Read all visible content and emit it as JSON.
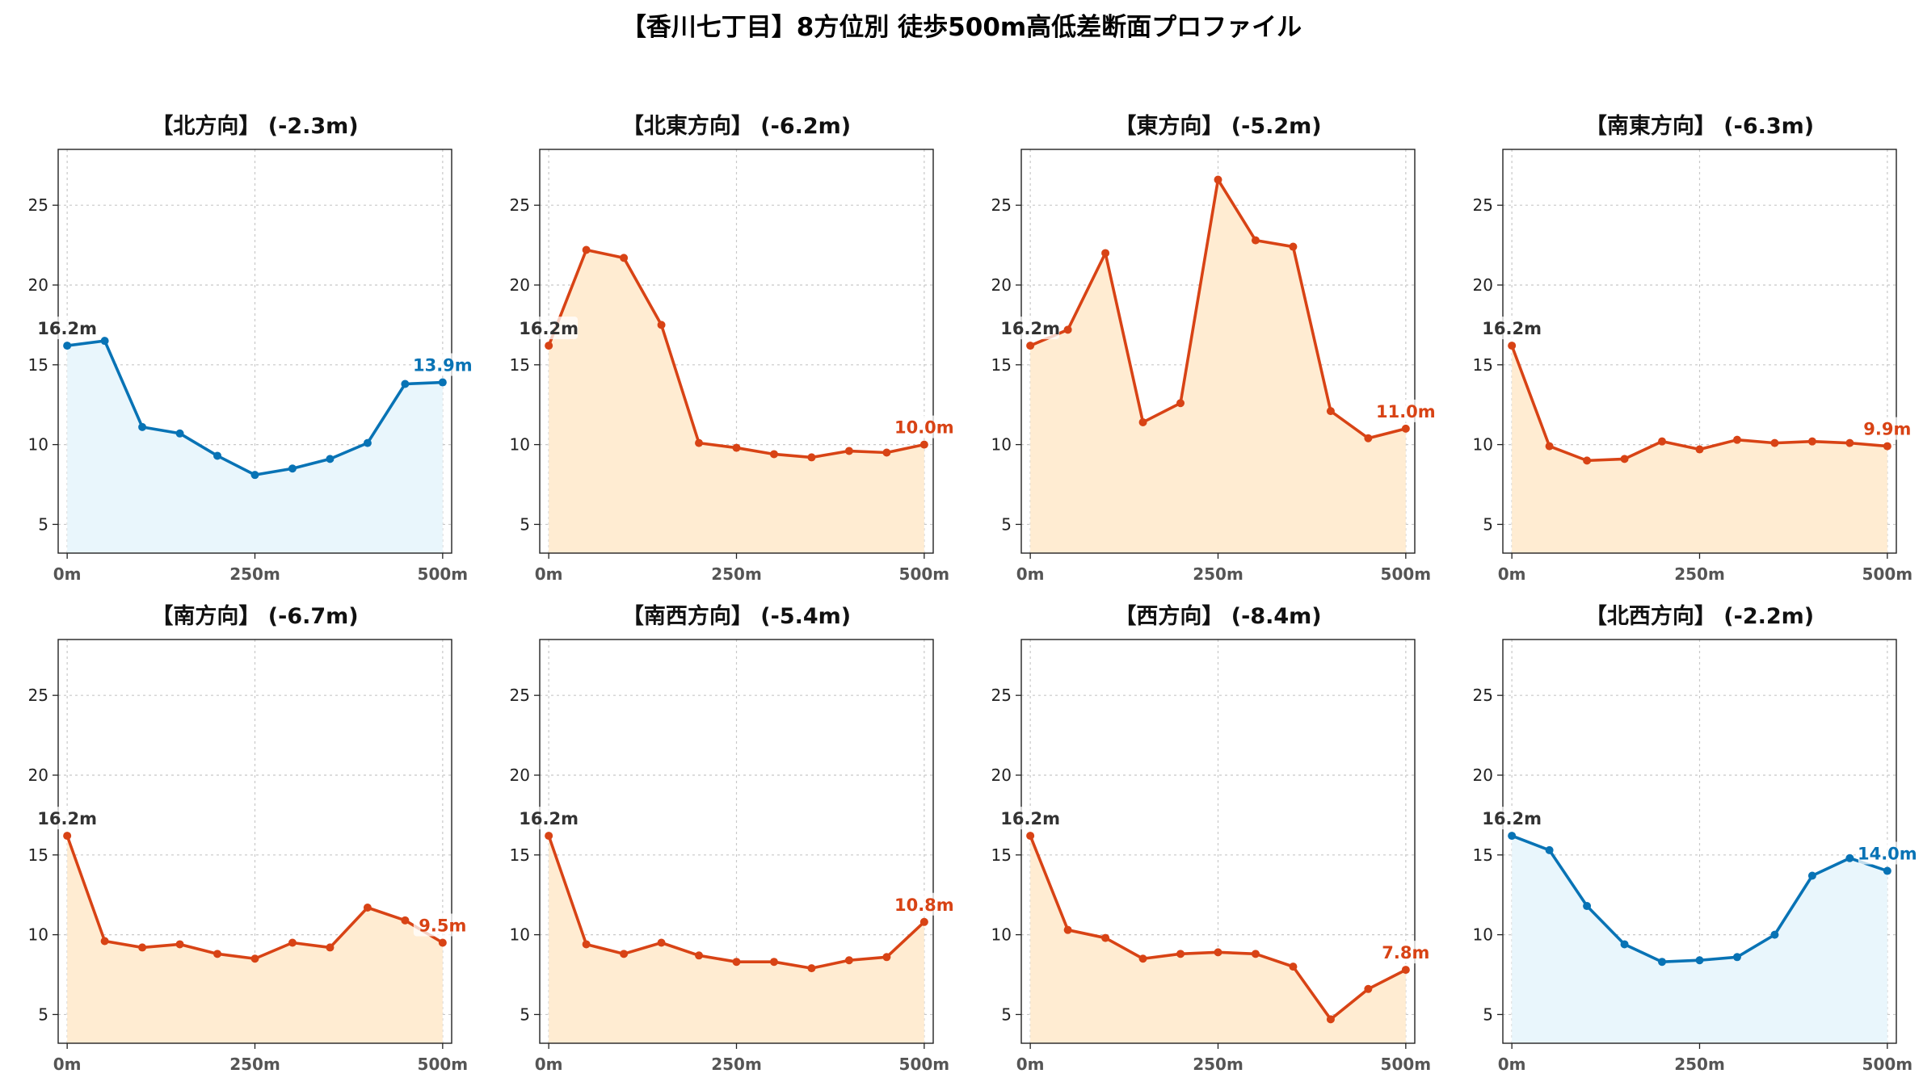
{
  "title": "【香川七丁目】8方位別 徒歩500m高低差断面プロファイル",
  "colors": {
    "down_line": "#d84315",
    "down_fill": "#ffecd2",
    "up_line": "#0873b5",
    "up_fill": "#e9f6fc",
    "start_label": "#333333"
  },
  "chart_data": [
    {
      "type": "area",
      "title": "【北方向】 (-2.3m)",
      "color": "up",
      "x": [
        0,
        50,
        100,
        150,
        200,
        250,
        300,
        350,
        400,
        450,
        500
      ],
      "values": [
        16.2,
        16.5,
        11.1,
        10.7,
        9.3,
        8.1,
        8.5,
        9.1,
        10.1,
        13.8,
        13.9
      ],
      "start_label": "16.2m",
      "end_label": "13.9m",
      "xticks": [
        "0m",
        "250m",
        "500m"
      ],
      "yticks": [
        5,
        10,
        15,
        20,
        25
      ],
      "xlim": [
        -12,
        512
      ],
      "ylim": [
        3.2,
        28.5
      ],
      "grid": true
    },
    {
      "type": "area",
      "title": "【北東方向】 (-6.2m)",
      "color": "down",
      "x": [
        0,
        50,
        100,
        150,
        200,
        250,
        300,
        350,
        400,
        450,
        500
      ],
      "values": [
        16.2,
        22.2,
        21.7,
        17.5,
        10.1,
        9.8,
        9.4,
        9.2,
        9.6,
        9.5,
        10.0
      ],
      "start_label": "16.2m",
      "end_label": "10.0m",
      "xticks": [
        "0m",
        "250m",
        "500m"
      ],
      "yticks": [
        5,
        10,
        15,
        20,
        25
      ],
      "xlim": [
        -12,
        512
      ],
      "ylim": [
        3.2,
        28.5
      ],
      "grid": true
    },
    {
      "type": "area",
      "title": "【東方向】 (-5.2m)",
      "color": "down",
      "x": [
        0,
        50,
        100,
        150,
        200,
        250,
        300,
        350,
        400,
        450,
        500
      ],
      "values": [
        16.2,
        17.2,
        22.0,
        11.4,
        12.6,
        26.6,
        22.8,
        22.4,
        12.1,
        10.4,
        11.0
      ],
      "start_label": "16.2m",
      "end_label": "11.0m",
      "xticks": [
        "0m",
        "250m",
        "500m"
      ],
      "yticks": [
        5,
        10,
        15,
        20,
        25
      ],
      "xlim": [
        -12,
        512
      ],
      "ylim": [
        3.2,
        28.5
      ],
      "grid": true
    },
    {
      "type": "area",
      "title": "【南東方向】 (-6.3m)",
      "color": "down",
      "x": [
        0,
        50,
        100,
        150,
        200,
        250,
        300,
        350,
        400,
        450,
        500
      ],
      "values": [
        16.2,
        9.9,
        9.0,
        9.1,
        10.2,
        9.7,
        10.3,
        10.1,
        10.2,
        10.1,
        9.9
      ],
      "start_label": "16.2m",
      "end_label": "9.9m",
      "xticks": [
        "0m",
        "250m",
        "500m"
      ],
      "yticks": [
        5,
        10,
        15,
        20,
        25
      ],
      "xlim": [
        -12,
        512
      ],
      "ylim": [
        3.2,
        28.5
      ],
      "grid": true
    },
    {
      "type": "area",
      "title": "【南方向】 (-6.7m)",
      "color": "down",
      "x": [
        0,
        50,
        100,
        150,
        200,
        250,
        300,
        350,
        400,
        450,
        500
      ],
      "values": [
        16.2,
        9.6,
        9.2,
        9.4,
        8.8,
        8.5,
        9.5,
        9.2,
        11.7,
        10.9,
        9.5
      ],
      "start_label": "16.2m",
      "end_label": "9.5m",
      "xticks": [
        "0m",
        "250m",
        "500m"
      ],
      "yticks": [
        5,
        10,
        15,
        20,
        25
      ],
      "xlim": [
        -12,
        512
      ],
      "ylim": [
        3.2,
        28.5
      ],
      "grid": true
    },
    {
      "type": "area",
      "title": "【南西方向】 (-5.4m)",
      "color": "down",
      "x": [
        0,
        50,
        100,
        150,
        200,
        250,
        300,
        350,
        400,
        450,
        500
      ],
      "values": [
        16.2,
        9.4,
        8.8,
        9.5,
        8.7,
        8.3,
        8.3,
        7.9,
        8.4,
        8.6,
        10.8
      ],
      "start_label": "16.2m",
      "end_label": "10.8m",
      "xticks": [
        "0m",
        "250m",
        "500m"
      ],
      "yticks": [
        5,
        10,
        15,
        20,
        25
      ],
      "xlim": [
        -12,
        512
      ],
      "ylim": [
        3.2,
        28.5
      ],
      "grid": true
    },
    {
      "type": "area",
      "title": "【西方向】 (-8.4m)",
      "color": "down",
      "x": [
        0,
        50,
        100,
        150,
        200,
        250,
        300,
        350,
        400,
        450,
        500
      ],
      "values": [
        16.2,
        10.3,
        9.8,
        8.5,
        8.8,
        8.9,
        8.8,
        8.0,
        4.7,
        6.6,
        7.8
      ],
      "start_label": "16.2m",
      "end_label": "7.8m",
      "xticks": [
        "0m",
        "250m",
        "500m"
      ],
      "yticks": [
        5,
        10,
        15,
        20,
        25
      ],
      "xlim": [
        -12,
        512
      ],
      "ylim": [
        3.2,
        28.5
      ],
      "grid": true
    },
    {
      "type": "area",
      "title": "【北西方向】 (-2.2m)",
      "color": "up",
      "x": [
        0,
        50,
        100,
        150,
        200,
        250,
        300,
        350,
        400,
        450,
        500
      ],
      "values": [
        16.2,
        15.3,
        11.8,
        9.4,
        8.3,
        8.4,
        8.6,
        10.0,
        13.7,
        14.8,
        14.0
      ],
      "start_label": "16.2m",
      "end_label": "14.0m",
      "xticks": [
        "0m",
        "250m",
        "500m"
      ],
      "yticks": [
        5,
        10,
        15,
        20,
        25
      ],
      "xlim": [
        -12,
        512
      ],
      "ylim": [
        3.2,
        28.5
      ],
      "grid": true
    }
  ]
}
